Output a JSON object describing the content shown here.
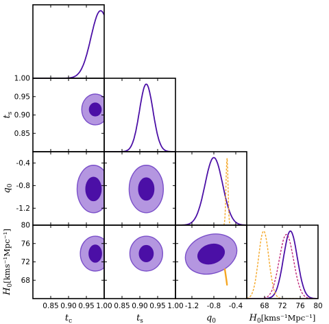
{
  "chart_data": {
    "type": "corner",
    "parameters": [
      {
        "key": "t_c",
        "label": "t",
        "sub": "c",
        "range": [
          0.8,
          1.0
        ],
        "ticks": [
          "0.85",
          "0.90",
          "0.95",
          "1.00"
        ],
        "tick_values": [
          0.85,
          0.9,
          0.95,
          1.0
        ]
      },
      {
        "key": "t_s",
        "label": "t",
        "sub": "s",
        "range": [
          0.8,
          1.0
        ],
        "ticks": [
          "0.85",
          "0.90",
          "0.95",
          "1.00"
        ],
        "tick_values": [
          0.85,
          0.9,
          0.95,
          1.0
        ]
      },
      {
        "key": "q_0",
        "label": "q",
        "sub": "0",
        "range": [
          -1.5,
          -0.2
        ],
        "ticks": [
          "-1.2",
          "-0.8",
          "-0.4"
        ],
        "tick_values": [
          -1.2,
          -0.8,
          -0.4
        ]
      },
      {
        "key": "H_0",
        "label": "H",
        "sub": "0",
        "unit": "[kms⁻¹Mpc⁻¹]",
        "range": [
          64.0,
          80.0
        ],
        "ticks": [
          "68",
          "72",
          "76",
          "80"
        ],
        "tick_values": [
          68,
          72,
          76,
          80
        ]
      }
    ],
    "y_tick_labels": {
      "t_s": [
        "0.85",
        "0.90",
        "0.95",
        "1.00"
      ],
      "q_0": [
        "-1.2",
        "-0.8",
        "-0.4"
      ],
      "H_0": [
        "68",
        "72",
        "76",
        "80"
      ]
    },
    "marginals": [
      {
        "param": "t_c",
        "mean": 0.99,
        "sd": 0.027,
        "upper_cut": 1.0
      },
      {
        "param": "t_s",
        "mean": 0.918,
        "sd": 0.019
      },
      {
        "param": "q_0",
        "mean": -0.8,
        "sd": 0.16
      },
      {
        "param": "H_0",
        "mean": 73.8,
        "sd": 1.55
      }
    ],
    "extra_marginals": [
      {
        "param": "q_0",
        "mean": -0.56,
        "sd": 0.018,
        "color": "#f5a623",
        "style": "dashed",
        "height": 1.0
      },
      {
        "param": "H_0",
        "mean": 67.8,
        "sd": 1.15,
        "color": "#f5a623",
        "style": "dashed",
        "height": 1.0
      },
      {
        "param": "H_0",
        "mean": 72.9,
        "sd": 1.6,
        "color": "#c0297a",
        "style": "dashed",
        "height": 0.95
      }
    ],
    "contours": [
      {
        "x": "t_c",
        "y": "t_s",
        "cx": 0.975,
        "cy": 0.915,
        "rx1": 0.038,
        "ry1": 0.042,
        "rx2": 0.017,
        "ry2": 0.018,
        "clip_right": 1.0
      },
      {
        "x": "t_c",
        "y": "q_0",
        "cx": 0.97,
        "cy": -0.86,
        "rx1": 0.046,
        "ry1": 0.42,
        "rx2": 0.022,
        "ry2": 0.21,
        "clip_right": 1.0
      },
      {
        "x": "t_s",
        "y": "q_0",
        "cx": 0.918,
        "cy": -0.86,
        "rx1": 0.048,
        "ry1": 0.42,
        "rx2": 0.022,
        "ry2": 0.2
      },
      {
        "x": "t_c",
        "y": "H_0",
        "cx": 0.975,
        "cy": 73.8,
        "rx1": 0.042,
        "ry1": 3.8,
        "rx2": 0.018,
        "ry2": 1.9,
        "clip_right": 1.0
      },
      {
        "x": "t_s",
        "y": "H_0",
        "cx": 0.918,
        "cy": 73.8,
        "rx1": 0.046,
        "ry1": 3.8,
        "rx2": 0.02,
        "ry2": 1.8
      },
      {
        "x": "q_0",
        "y": "H_0",
        "cx": -0.85,
        "cy": 73.7,
        "rx1": 0.48,
        "ry1": 4.2,
        "rx2": 0.25,
        "ry2": 2.1,
        "rotate": -18
      }
    ],
    "extra_contours": [
      {
        "x": "q_0",
        "y": "H_0",
        "points": [
          [
            -0.6,
            70.4
          ],
          [
            -0.585,
            69.2
          ],
          [
            -0.57,
            68.0
          ],
          [
            -0.56,
            67.0
          ]
        ],
        "color": "#f5a623"
      }
    ],
    "colors": {
      "outer": "#b496e0",
      "inner": "#4b0fa6",
      "edge": "#7a4fc9",
      "line": "#4b0fa6",
      "orange": "#f5a623",
      "pink": "#c0297a"
    }
  }
}
